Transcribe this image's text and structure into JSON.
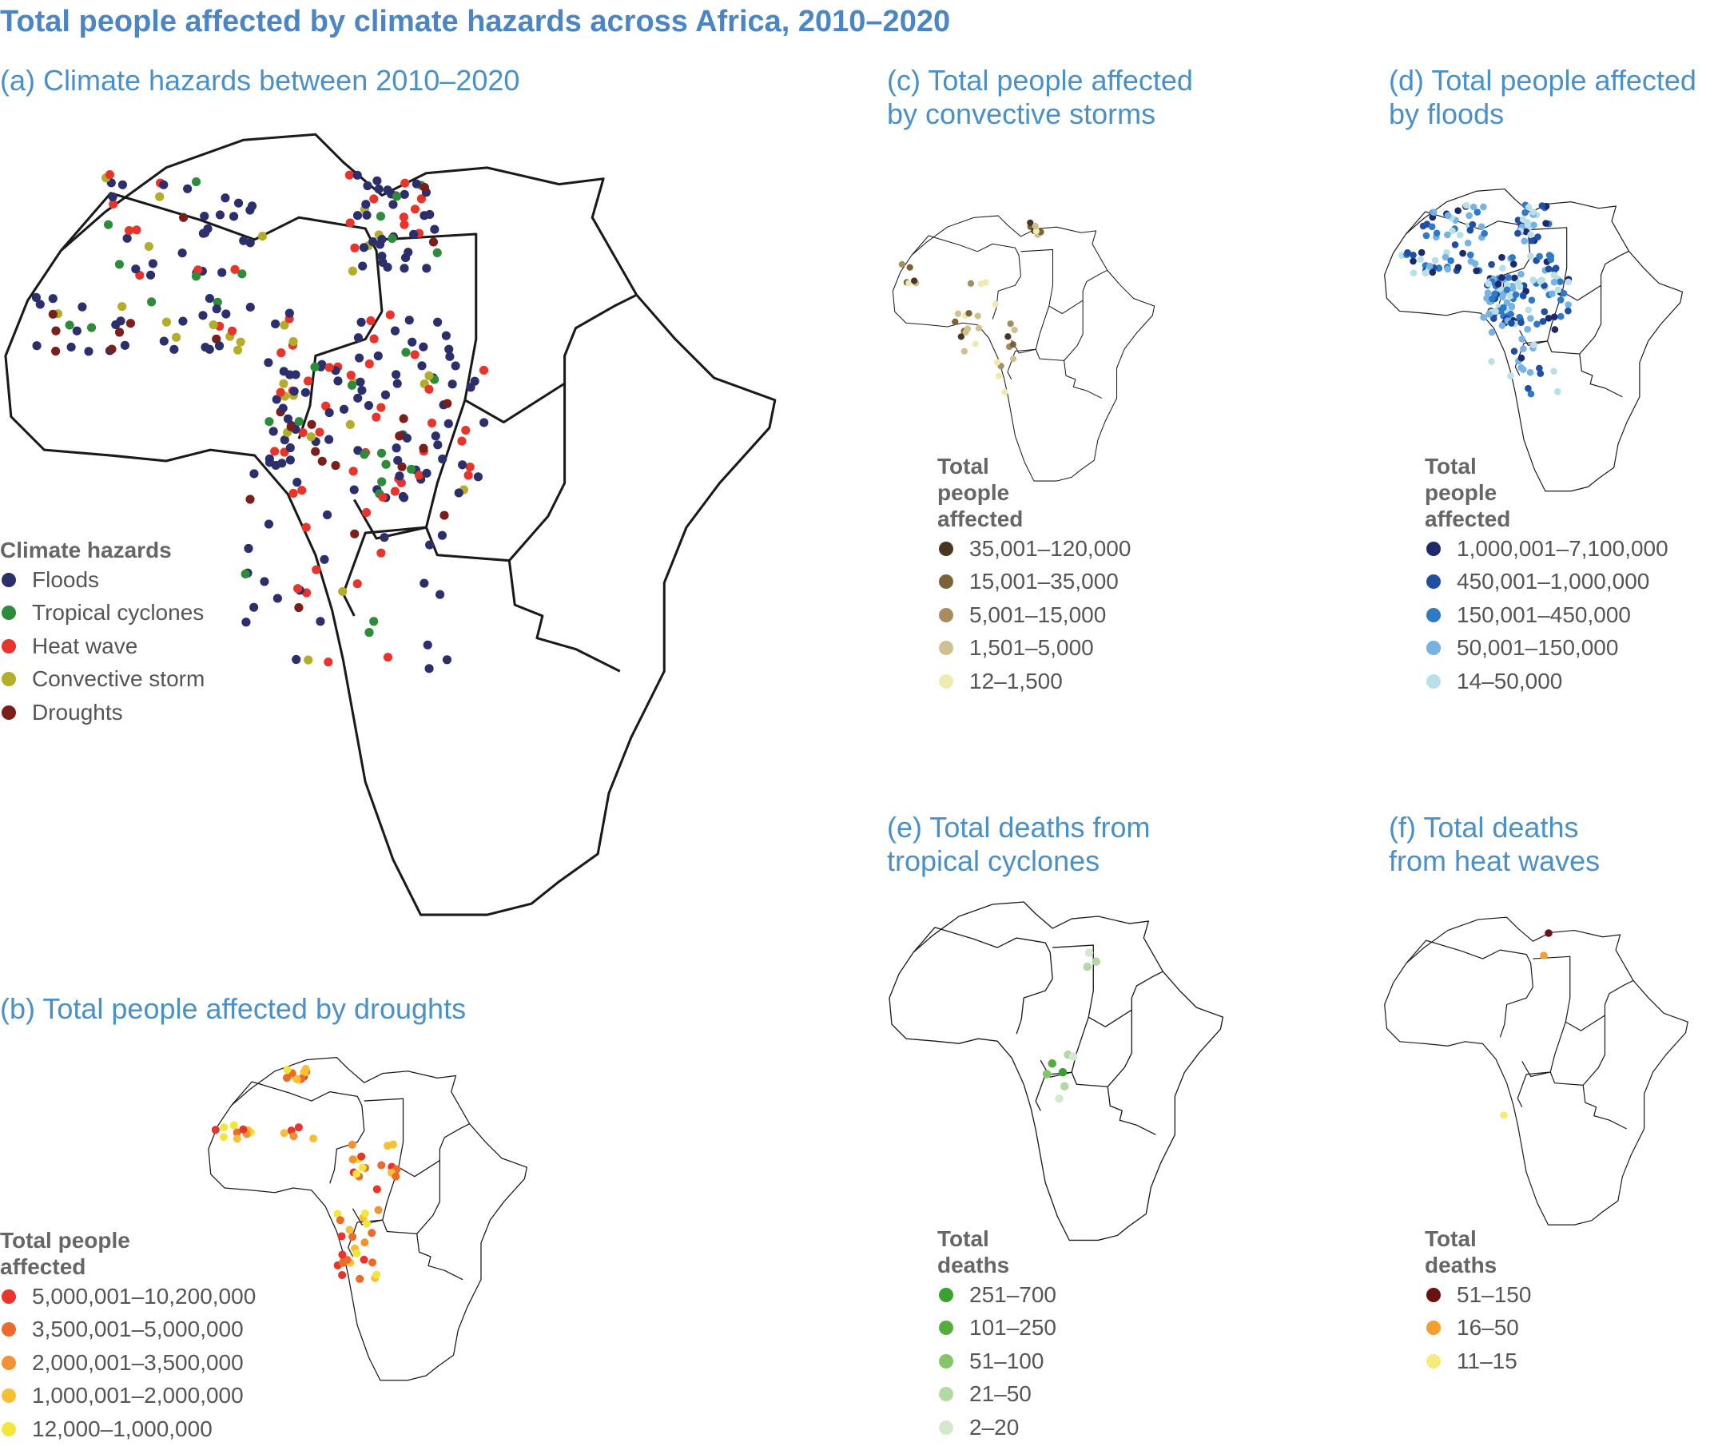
{
  "title": "Total people affected by climate hazards across Africa, 2010–2020",
  "panels": {
    "a": {
      "title": "(a) Climate hazards between 2010–2020",
      "legend_title": "Climate hazards",
      "legend": [
        {
          "label": "Floods",
          "color": "#2b2f6b"
        },
        {
          "label": "Tropical cyclones",
          "color": "#2e8b3a"
        },
        {
          "label": "Heat wave",
          "color": "#e8342b"
        },
        {
          "label": "Convective storm",
          "color": "#b3ad2a"
        },
        {
          "label": "Droughts",
          "color": "#7a1f1a"
        }
      ]
    },
    "b": {
      "title": "(b) Total people affected by droughts",
      "legend_title": [
        "Total people",
        "affected"
      ],
      "legend": [
        {
          "label": "5,000,001–10,200,000",
          "color": "#e8342b"
        },
        {
          "label": "3,500,001–5,000,000",
          "color": "#ec6a2c"
        },
        {
          "label": "2,000,001–3,500,000",
          "color": "#f29232"
        },
        {
          "label": "1,000,001–2,000,000",
          "color": "#f6bf35"
        },
        {
          "label": "12,000–1,000,000",
          "color": "#f3e63a"
        }
      ]
    },
    "c": {
      "title": [
        "(c) Total people affected",
        "by convective storms"
      ],
      "legend_title": [
        "Total",
        "people",
        "affected"
      ],
      "legend": [
        {
          "label": "35,001–120,000",
          "color": "#4a3520"
        },
        {
          "label": "15,001–35,000",
          "color": "#7d6238"
        },
        {
          "label": "5,001–15,000",
          "color": "#a58d5e"
        },
        {
          "label": "1,501–5,000",
          "color": "#cfc08f"
        },
        {
          "label": "12–1,500",
          "color": "#eeeab0"
        }
      ]
    },
    "d": {
      "title": [
        "(d) Total people affected",
        "by floods"
      ],
      "legend_title": [
        "Total",
        "people",
        "affected"
      ],
      "legend": [
        {
          "label": "1,000,001–7,100,000",
          "color": "#1c2a6b"
        },
        {
          "label": "450,001–1,000,000",
          "color": "#1f4ea3"
        },
        {
          "label": "150,001–450,000",
          "color": "#2f7ac6"
        },
        {
          "label": "50,001–150,000",
          "color": "#76b2e2"
        },
        {
          "label": "14–50,000",
          "color": "#b9dfe8"
        }
      ]
    },
    "e": {
      "title": [
        "(e) Total deaths from",
        "tropical cyclones"
      ],
      "legend_title": [
        "Total",
        "deaths"
      ],
      "legend": [
        {
          "label": "251–700",
          "color": "#3aa12f"
        },
        {
          "label": "101–250",
          "color": "#55ad3e"
        },
        {
          "label": "51–100",
          "color": "#85c46a"
        },
        {
          "label": "21–50",
          "color": "#b3d8a3"
        },
        {
          "label": "2–20",
          "color": "#d4e8cd"
        }
      ]
    },
    "f": {
      "title": [
        "(f) Total deaths",
        "from heat waves"
      ],
      "legend_title": [
        "Total",
        "deaths"
      ],
      "legend": [
        {
          "label": "51–150",
          "color": "#6a1212"
        },
        {
          "label": "16–50",
          "color": "#f2a02e"
        },
        {
          "label": "11–15",
          "color": "#f6ea7a"
        }
      ]
    }
  }
}
